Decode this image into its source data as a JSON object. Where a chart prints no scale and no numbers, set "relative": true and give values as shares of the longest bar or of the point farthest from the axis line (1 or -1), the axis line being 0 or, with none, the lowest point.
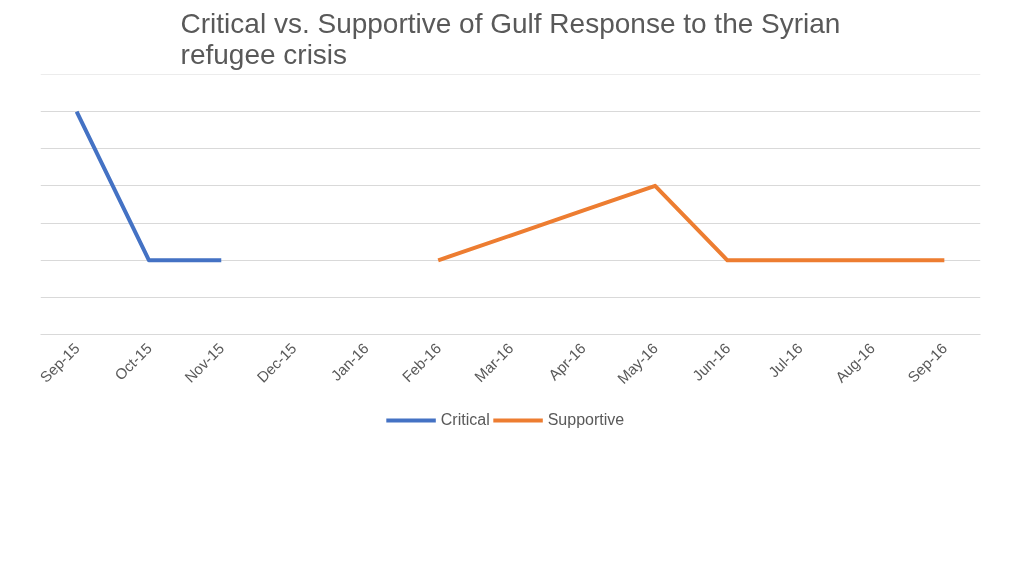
{
  "chart_data": {
    "type": "line",
    "title": "Critical vs. Supportive of Gulf Response to the Syrian refugee crisis",
    "categories": [
      "Sep-15",
      "Oct-15",
      "Nov-15",
      "Dec-15",
      "Jan-16",
      "Feb-16",
      "Mar-16",
      "Apr-16",
      "May-16",
      "Jun-16",
      "Jul-16",
      "Aug-16",
      "Sep-16"
    ],
    "relative": true,
    "grid": "y",
    "legend": "bottom",
    "series": [
      {
        "name": "Critical",
        "color": "#4472c4",
        "values": [
          1,
          0.333,
          0.333,
          null,
          null,
          null,
          null,
          null,
          null,
          null,
          null,
          null,
          null
        ]
      },
      {
        "name": "Supportive",
        "color": "#ed7d31",
        "values": [
          null,
          null,
          null,
          null,
          null,
          0.333,
          0.444,
          0.556,
          0.667,
          0.333,
          0.333,
          0.333,
          0.333
        ]
      }
    ]
  }
}
